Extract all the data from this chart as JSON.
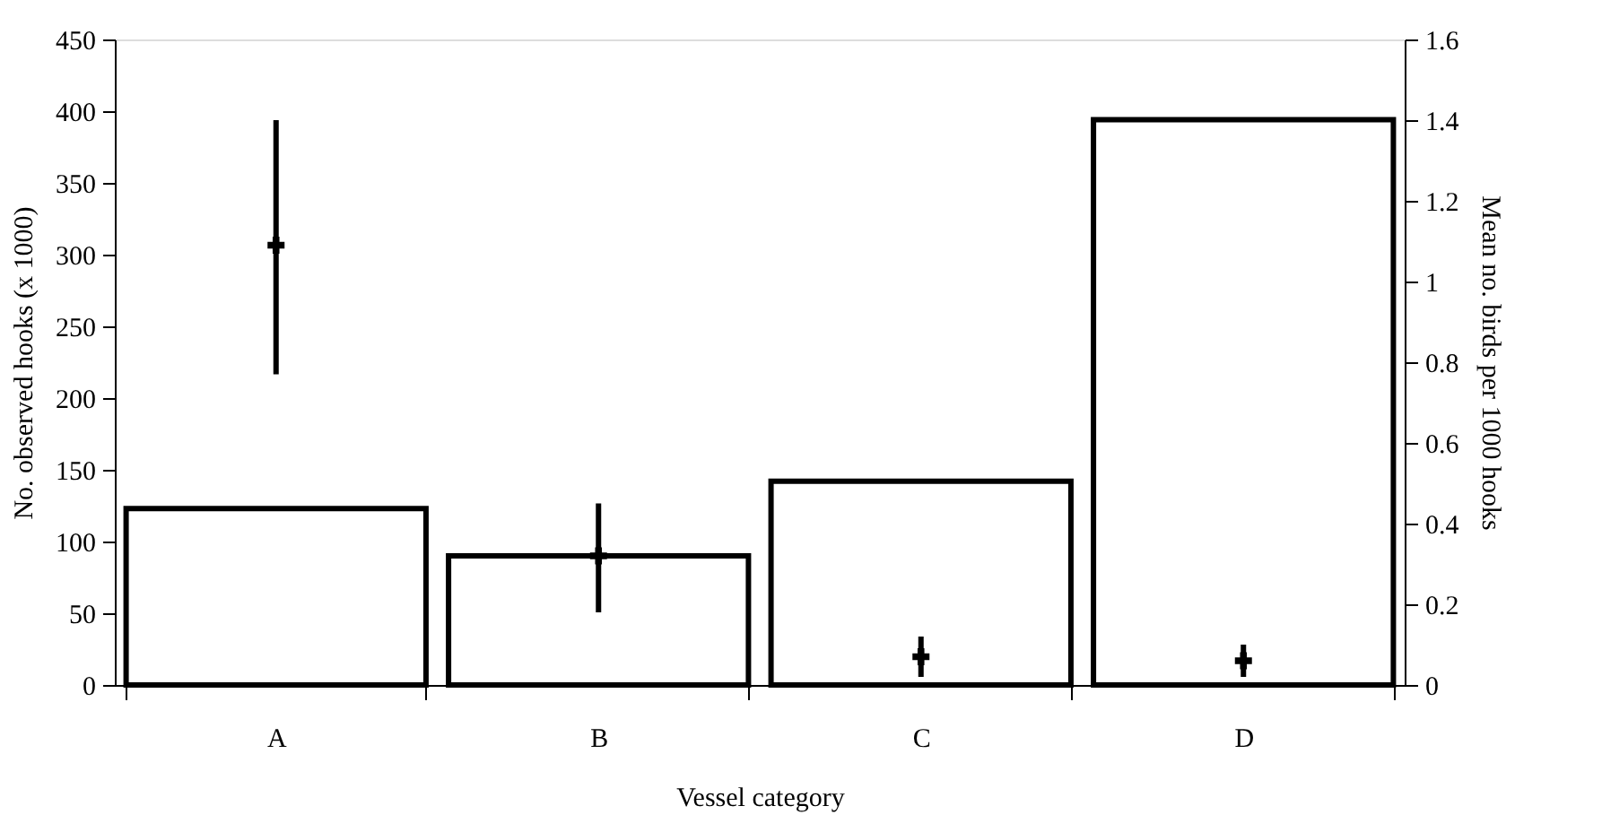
{
  "chart_data": {
    "type": "bar",
    "xlabel": "Vessel category",
    "ylabel": "No. observed hooks (x 1000)",
    "y2label": "Mean no. birds per 1000 hooks",
    "categories": [
      "A",
      "B",
      "C",
      "D"
    ],
    "series": [
      {
        "color": "#ffffff",
        "values": [
          123,
          90,
          142,
          394
        ]
      },
      {
        "type": "scatter",
        "axis": "y2",
        "marker": "cross",
        "color": "#000000",
        "values": [
          1.09,
          0.32,
          0.07,
          0.06
        ],
        "errors": [
          [
            0.77,
            1.4
          ],
          [
            0.18,
            0.45
          ],
          [
            0.02,
            0.12
          ],
          [
            0.02,
            0.1
          ]
        ]
      }
    ],
    "ylim": [
      0,
      450
    ],
    "yticks": [
      0,
      50,
      100,
      150,
      200,
      250,
      300,
      350,
      400,
      450
    ],
    "y2lim": [
      0,
      1.6
    ],
    "y2ticks": [
      0,
      {
        "value": 0.2,
        "label": "0.2"
      },
      {
        "value": 0.4,
        "label": "0.4"
      },
      {
        "value": 0.6,
        "label": "0.6"
      },
      {
        "value": 0.8,
        "label": "0.8"
      },
      1,
      {
        "value": 1.2,
        "label": "1.2"
      },
      {
        "value": 1.4,
        "label": "1.4"
      },
      {
        "value": 1.6,
        "label": "1.6"
      }
    ],
    "grid": false
  }
}
